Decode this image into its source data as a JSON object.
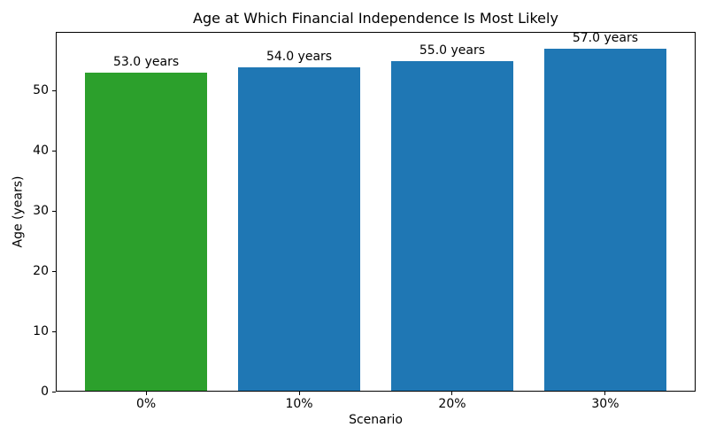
{
  "chart_data": {
    "type": "bar",
    "title": "Age at Which Financial Independence Is Most Likely",
    "xlabel": "Scenario",
    "ylabel": "Age (years)",
    "categories": [
      "0%",
      "10%",
      "20%",
      "30%"
    ],
    "values": [
      53.0,
      54.0,
      55.0,
      57.0
    ],
    "bar_labels": [
      "53.0 years",
      "54.0 years",
      "55.0 years",
      "57.0 years"
    ],
    "bar_colors": [
      "#2ca02c",
      "#1f77b4",
      "#1f77b4",
      "#1f77b4"
    ],
    "yticks": [
      0,
      10,
      20,
      30,
      40,
      50
    ],
    "ylim": [
      0,
      59.85
    ],
    "xlim": [
      -0.59,
      3.59
    ],
    "bar_width_units": 0.8,
    "grid": false,
    "background_color": "#ffffff",
    "spine_color": "#000000",
    "text_color": "#000000"
  }
}
